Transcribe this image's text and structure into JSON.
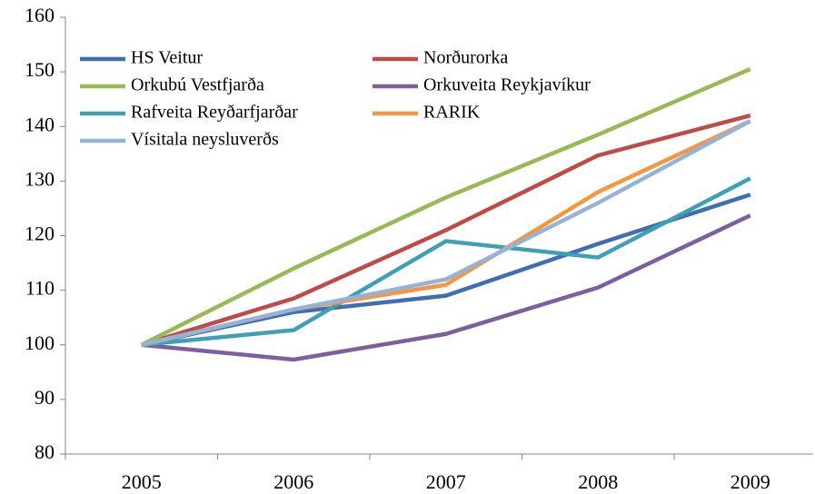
{
  "chart_data": {
    "type": "line",
    "categories": [
      "2005",
      "2006",
      "2007",
      "2008",
      "2009"
    ],
    "series": [
      {
        "name": "HS Veitur",
        "color": "#3f6fb0",
        "values": [
          100,
          106,
          109,
          118.5,
          127.5
        ]
      },
      {
        "name": "Norðurorka",
        "color": "#be4b48",
        "values": [
          100,
          108.5,
          121,
          134.7,
          142
        ]
      },
      {
        "name": "Orkubú Vestfjarða",
        "color": "#98b954",
        "values": [
          100,
          114,
          127,
          138.5,
          150.5
        ]
      },
      {
        "name": "Orkuveita Reykjavíkur",
        "color": "#7d5fa0",
        "values": [
          100,
          97.3,
          102,
          110.5,
          123.7
        ]
      },
      {
        "name": "Rafveita Reyðarfjarðar",
        "color": "#3fa0b5",
        "values": [
          100,
          102.7,
          119,
          116,
          130.5
        ]
      },
      {
        "name": "RARIK",
        "color": "#f59640",
        "values": [
          100,
          106.5,
          111,
          128,
          141
        ]
      },
      {
        "name": "Vísitala neysluverðs",
        "color": "#95b3d7",
        "values": [
          100,
          106.5,
          112,
          126,
          141
        ]
      }
    ],
    "ylim": [
      80,
      160
    ],
    "yticks": [
      80,
      90,
      100,
      110,
      120,
      130,
      140,
      150,
      160
    ],
    "grid": false,
    "legend": "upper-left"
  }
}
